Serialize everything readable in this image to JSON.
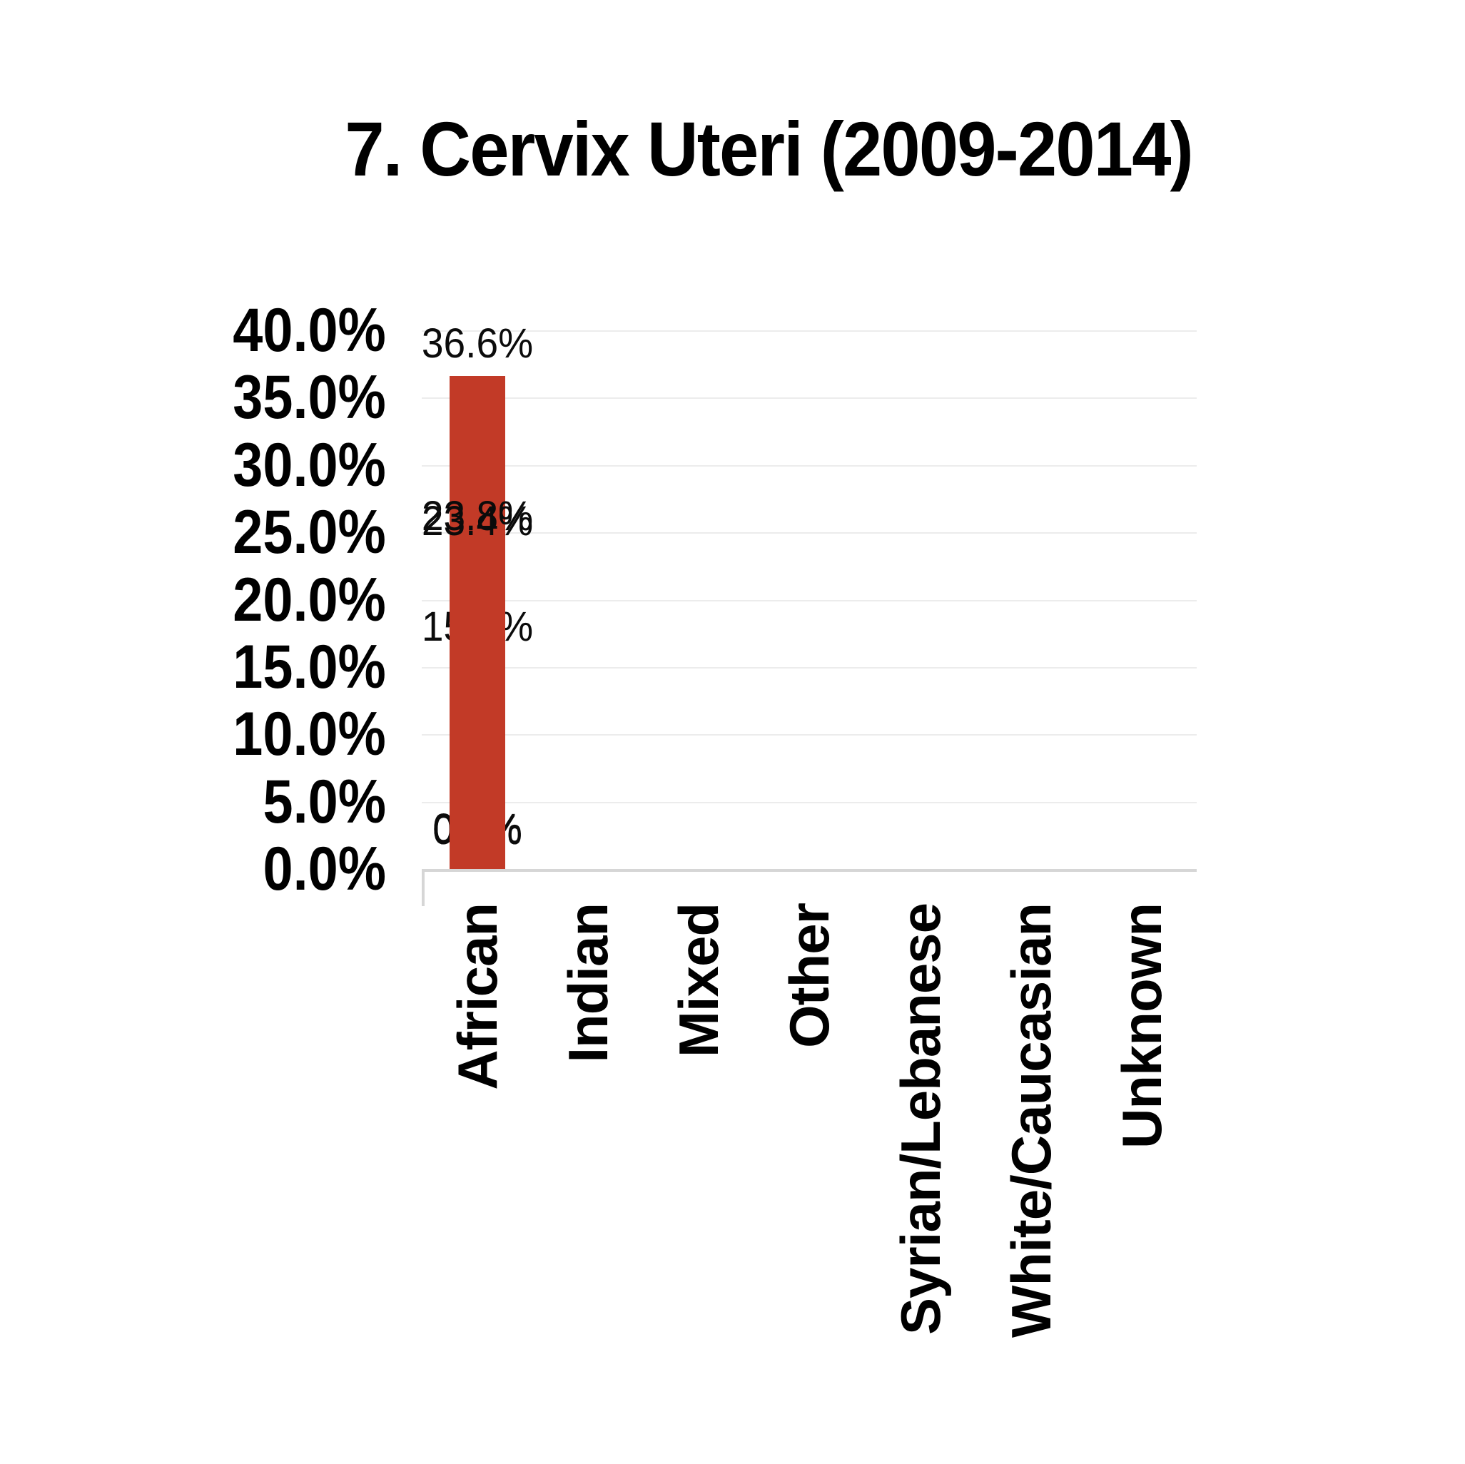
{
  "title": "7. Cervix Uteri (2009-2014)",
  "colors": {
    "bar": "#c23a27",
    "gridline": "#ececec",
    "axis": "#d6d6d6",
    "text": "#000000",
    "background": "#ffffff"
  },
  "chart_data": {
    "type": "bar",
    "title": "7. Cervix Uteri (2009-2014)",
    "categories": [
      "African",
      "Indian",
      "Mixed",
      "Other",
      "Syrian/Lebanese",
      "White/Caucasian",
      "Unknown"
    ],
    "values": [
      36.6,
      23.8,
      15.6,
      0.2,
      0.2,
      0.3,
      23.4
    ],
    "value_labels": [
      "36.6%",
      "23.8%",
      "15.6%",
      "0.2%",
      "0.2%",
      "0.3%",
      "23.4%"
    ],
    "y_tick_labels": [
      "40.0%",
      "35.0%",
      "30.0%",
      "25.0%",
      "20.0%",
      "15.0%",
      "10.0%",
      "5.0%",
      "0.0%"
    ],
    "xlabel": "",
    "ylabel": "",
    "ylim": [
      0,
      40
    ],
    "y_step": 5,
    "grid": true,
    "legend_position": "none",
    "bar_color": "#c23a27"
  }
}
